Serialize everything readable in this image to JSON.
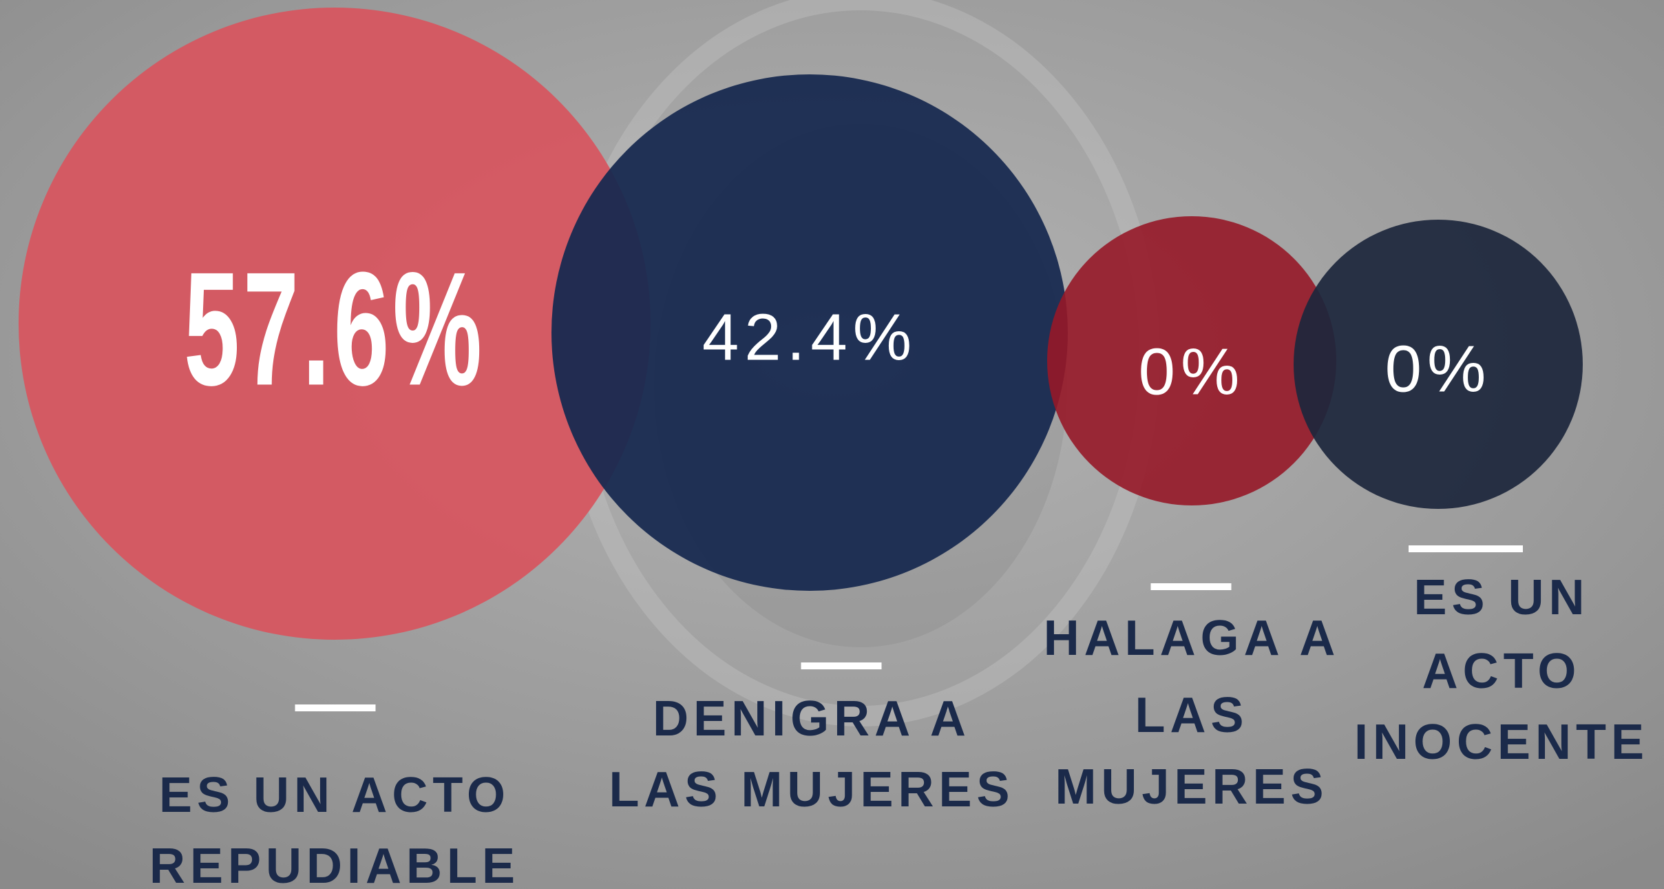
{
  "items": [
    {
      "value": "57.6%",
      "label": [
        "ES UN ACTO",
        "REPUDIABLE"
      ]
    },
    {
      "value": "42.4%",
      "label": [
        "DENIGRA A",
        "LAS MUJERES"
      ]
    },
    {
      "value": "0%",
      "label": [
        "HALAGA A",
        "LAS",
        "MUJERES"
      ]
    },
    {
      "value": "0%",
      "label": [
        "ES UN",
        "ACTO",
        "INOCENTE"
      ]
    }
  ]
}
